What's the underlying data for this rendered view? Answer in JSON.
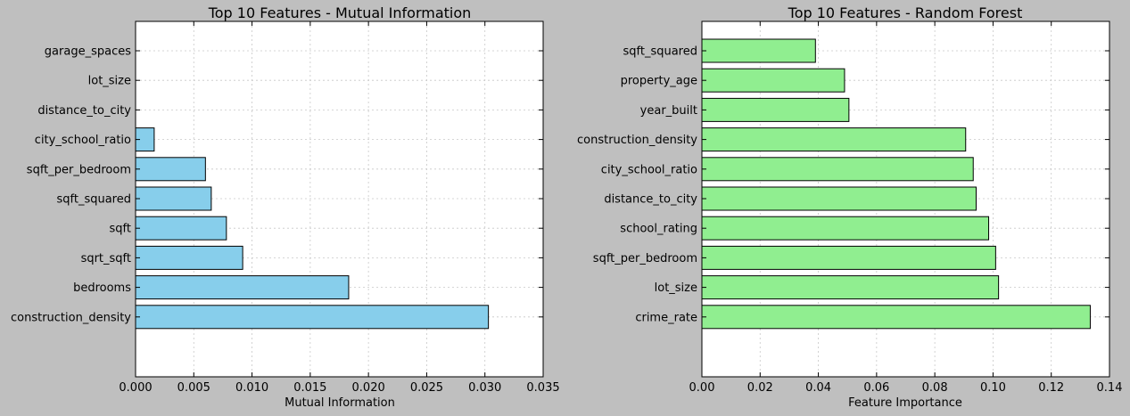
{
  "figure": {
    "background": "#bfbfbf"
  },
  "chart_data": [
    {
      "type": "bar",
      "orientation": "horizontal",
      "title": "Top 10 Features - Mutual Information",
      "xlabel": "Mutual Information",
      "ylabel": "",
      "categories": [
        "construction_density",
        "bedrooms",
        "sqrt_sqft",
        "sqft",
        "sqft_squared",
        "sqft_per_bedroom",
        "city_school_ratio",
        "distance_to_city",
        "lot_size",
        "garage_spaces"
      ],
      "values": [
        0.0303,
        0.0183,
        0.0092,
        0.0078,
        0.0065,
        0.006,
        0.0016,
        0.0,
        0.0,
        0.0
      ],
      "xlim": [
        0,
        0.035
      ],
      "xticks": [
        0.0,
        0.005,
        0.01,
        0.015,
        0.02,
        0.025,
        0.03,
        0.035
      ],
      "xtick_labels": [
        "0.000",
        "0.005",
        "0.010",
        "0.015",
        "0.020",
        "0.025",
        "0.030",
        "0.035"
      ],
      "grid": true,
      "bar_color": "#87ceeb"
    },
    {
      "type": "bar",
      "orientation": "horizontal",
      "title": "Top 10 Features - Random Forest",
      "xlabel": "Feature Importance",
      "ylabel": "",
      "categories": [
        "crime_rate",
        "lot_size",
        "sqft_per_bedroom",
        "school_rating",
        "distance_to_city",
        "city_school_ratio",
        "construction_density",
        "year_built",
        "property_age",
        "sqft_squared"
      ],
      "values": [
        0.1334,
        0.1019,
        0.1009,
        0.0985,
        0.0942,
        0.0932,
        0.0906,
        0.0505,
        0.049,
        0.039
      ],
      "xlim": [
        0,
        0.14
      ],
      "xticks": [
        0.0,
        0.02,
        0.04,
        0.06,
        0.08,
        0.1,
        0.12,
        0.14
      ],
      "xtick_labels": [
        "0.00",
        "0.02",
        "0.04",
        "0.06",
        "0.08",
        "0.10",
        "0.12",
        "0.14"
      ],
      "grid": true,
      "bar_color": "#90ee90"
    }
  ]
}
